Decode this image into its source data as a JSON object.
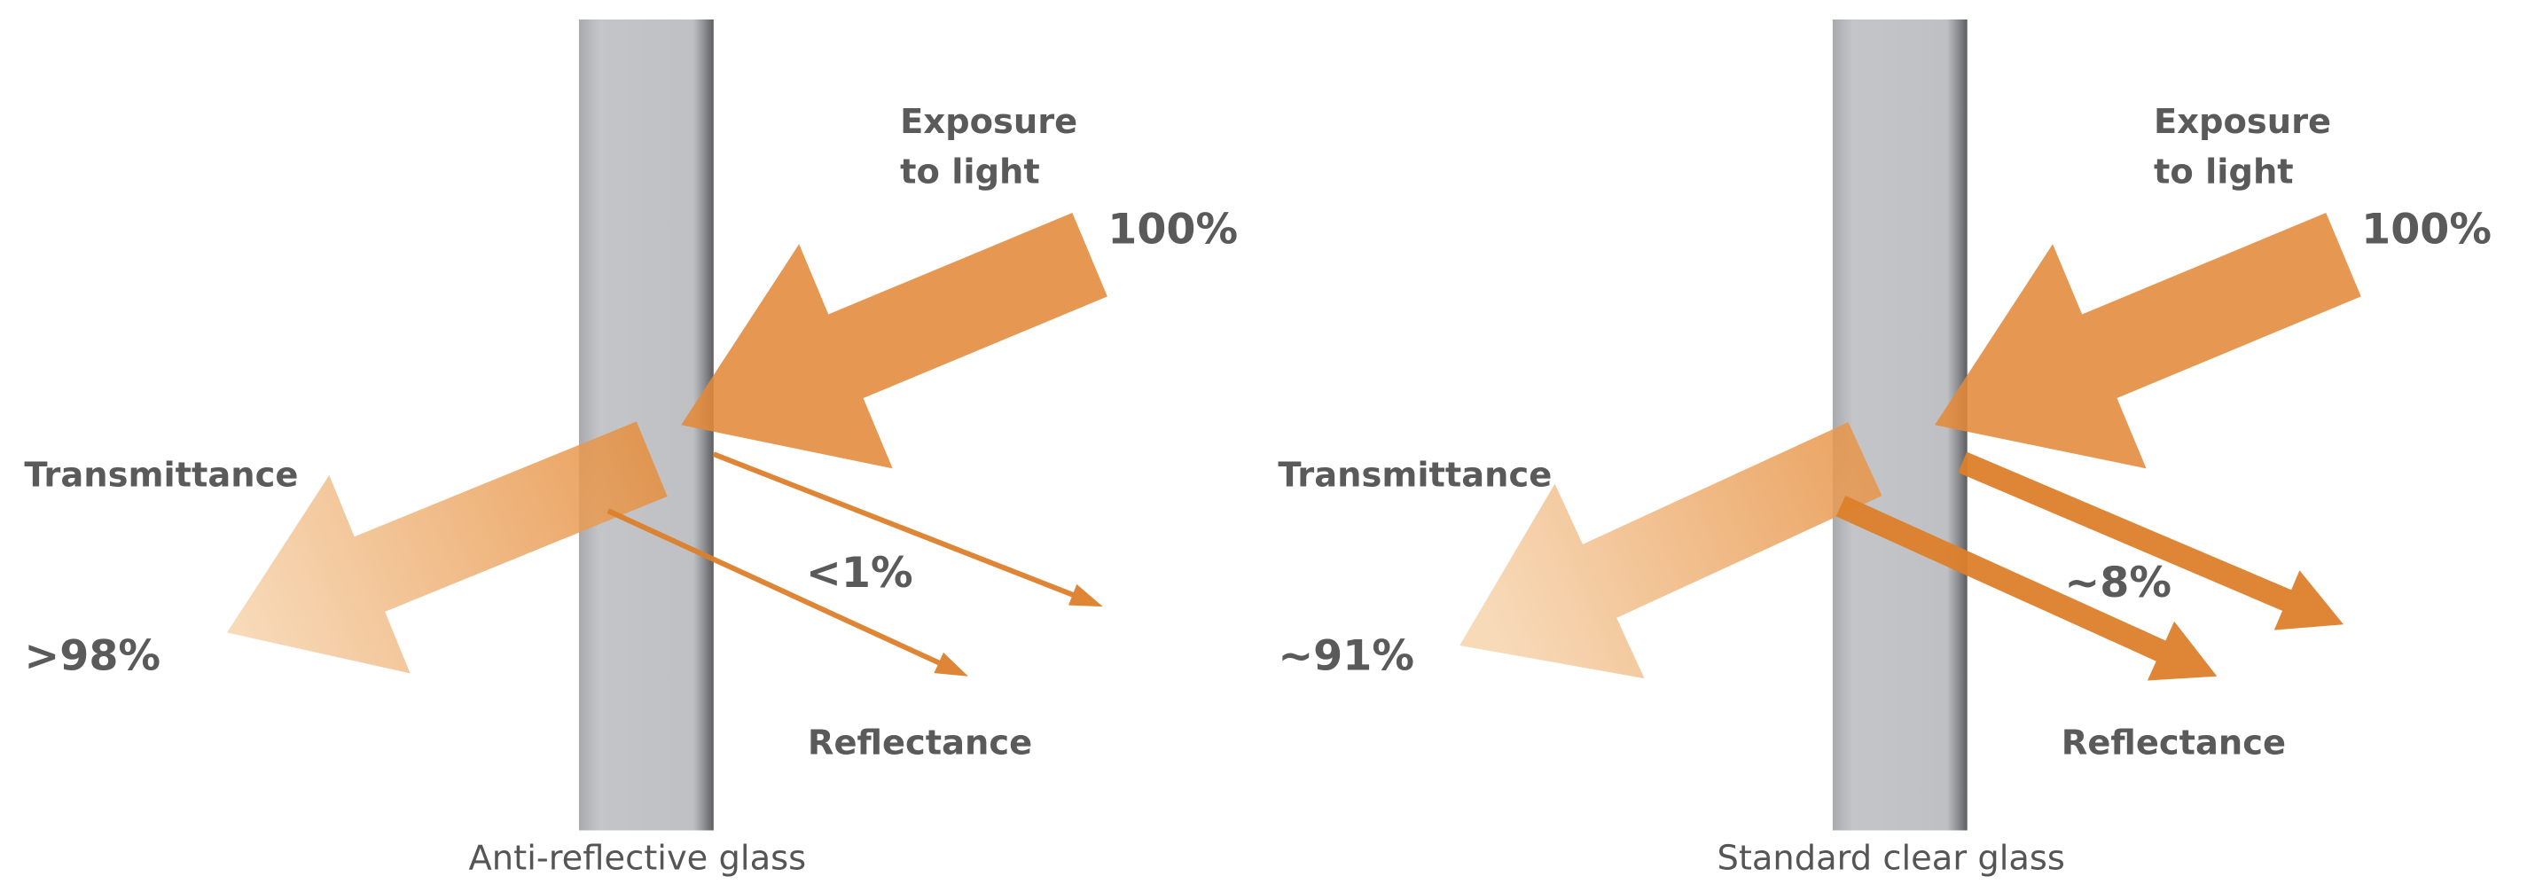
{
  "panels": [
    {
      "caption": "Anti-reflective glass",
      "exposure_label": [
        "Exposure",
        "to light"
      ],
      "incoming": "100%",
      "transmittance_label": "Transmittance",
      "transmittance": ">98%",
      "reflectance_label": "Reflectance",
      "reflectance": "<1%"
    },
    {
      "caption": "Standard clear glass",
      "exposure_label": [
        "Exposure",
        "to light"
      ],
      "incoming": "100%",
      "transmittance_label": "Transmittance",
      "transmittance": "~91%",
      "reflectance_label": "Reflectance",
      "reflectance": "~8%"
    }
  ]
}
